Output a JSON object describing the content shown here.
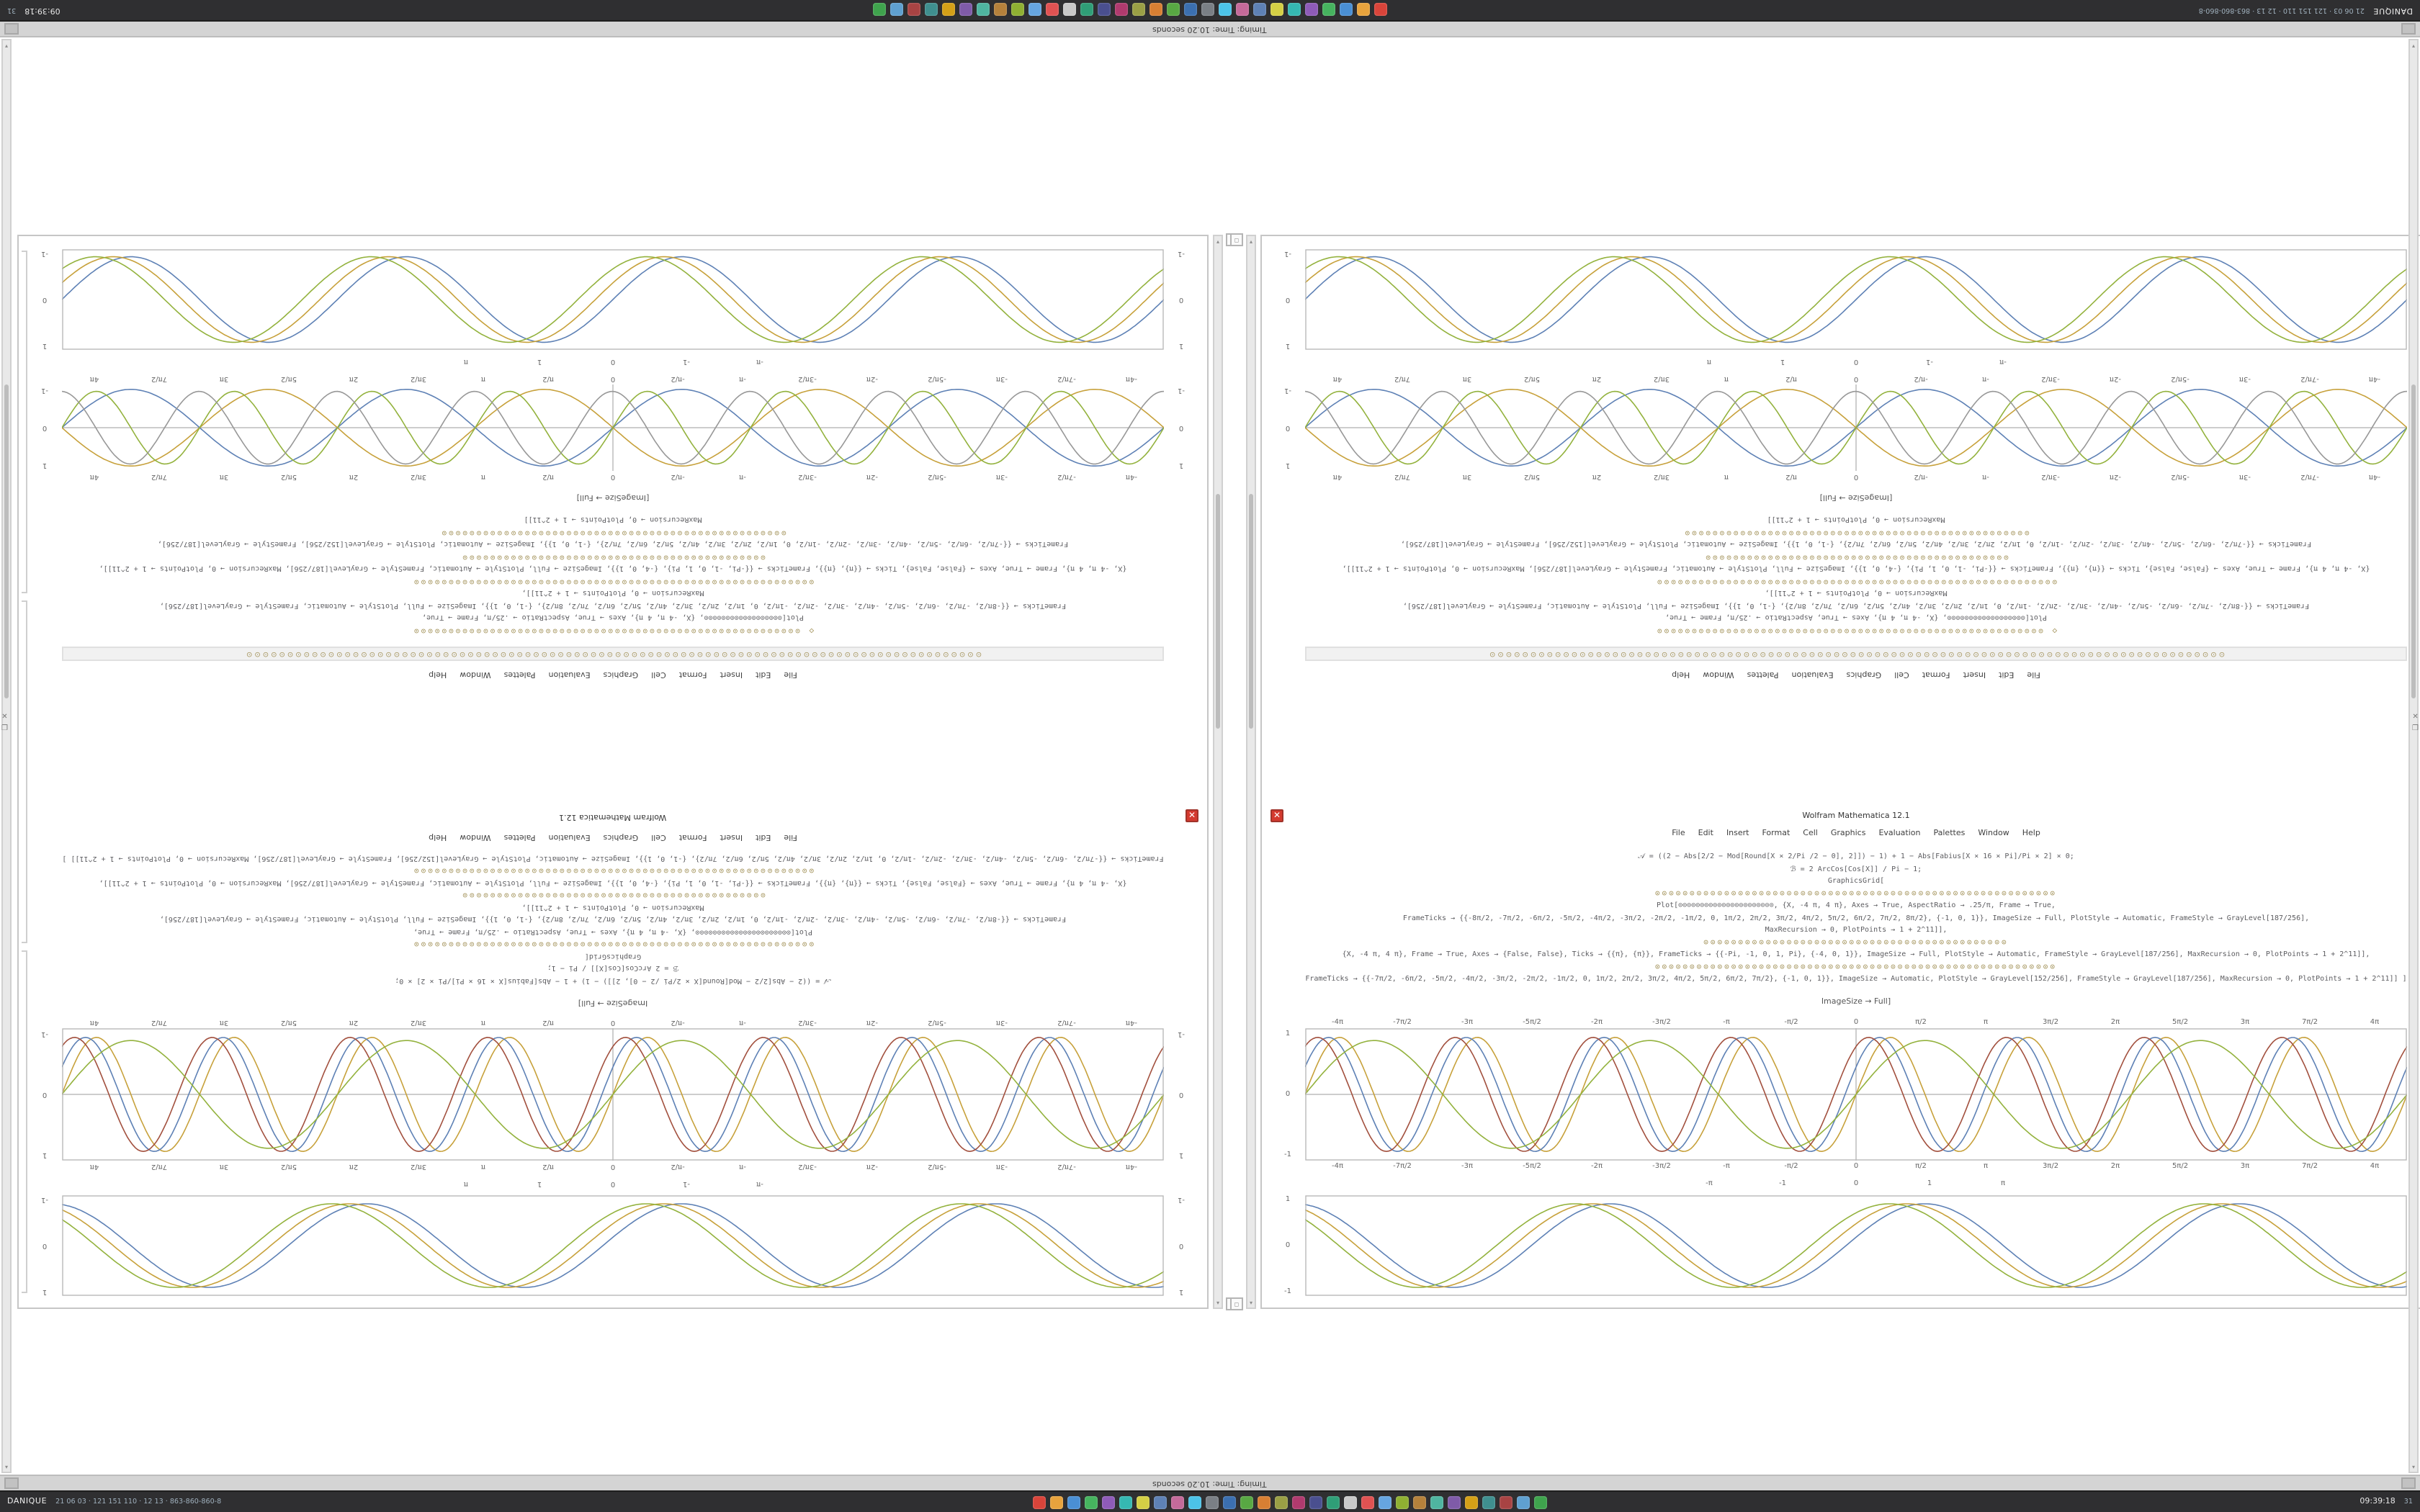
{
  "strips": {
    "timing": "Timing: Time: 10.20 seconds"
  },
  "taskbar": {
    "left_primary": "DANIQUE",
    "left_secondary": "21 06 03 · 121 151 110 · 12 13 · 863-860-860-8",
    "clock": "09:39:18",
    "clock_suffix": "31",
    "icon_colors": [
      "#d9443a",
      "#e8a33d",
      "#4a8fd4",
      "#46b35f",
      "#8e5bb8",
      "#35b8b2",
      "#d4cf45",
      "#5e81b5",
      "#c46a9a",
      "#4cc3e8",
      "#7a7f85",
      "#3b6fb0",
      "#58a843",
      "#d87f33",
      "#9a9f45",
      "#b03a6e",
      "#4a4f8f",
      "#2f9e77",
      "#c9c9c9",
      "#e05252",
      "#66a5e0",
      "#8fb032",
      "#b5813b",
      "#4fb5a0",
      "#7f5ba8",
      "#d4a017",
      "#3f8f8f",
      "#a84343",
      "#5fa0d0",
      "#3fa34d"
    ]
  },
  "glyphs": {
    "close": "✕",
    "restore": "❐",
    "corner": "◻",
    "up": "▴",
    "down": "▾"
  },
  "nb": {
    "title": "Wolfram Mathematica 12.1",
    "menu": [
      "File",
      "Edit",
      "Insert",
      "Format",
      "Cell",
      "Graphics",
      "Evaluation",
      "Palettes",
      "Window",
      "Help"
    ],
    "orb_strip": "⊙⊙⊙⊙⊙⊙⊙⊙⊙⊙⊙⊙⊙⊙⊙⊙⊙⊙⊙⊙⊙⊙⊙⊙⊙⊙⊙⊙⊙⊙⊙⊙⊙⊙⊙⊙⊙⊙⊙⊙⊙⊙⊙⊙⊙⊙⊙⊙⊙⊙⊙⊙⊙⊙⊙⊙⊙⊙⊙⊙⊙⊙⊙⊙⊙⊙⊙⊙⊙⊙⊙⊙⊙⊙⊙⊙⊙⊙⊙⊙⊙⊙⊙⊙⊙⊙⊙⊙⊙⊙",
    "caption1": "[ImageSize → Full]",
    "caption2": "ImageSize → Full]",
    "yticks": [
      "1",
      "0",
      "-1"
    ],
    "unit_ticks": [
      "",
      "",
      "",
      "",
      "",
      "-π",
      "-1",
      "0",
      "1",
      "π",
      "",
      "",
      "",
      "",
      ""
    ],
    "half_pi_ticks": [
      "-4π",
      "-7π/2",
      "-3π",
      "-5π/2",
      "-2π",
      "-3π/2",
      "-π",
      "-π/2",
      "0",
      "π/2",
      "π",
      "3π/2",
      "2π",
      "5π/2",
      "3π",
      "7π/2",
      "4π"
    ],
    "code_upper": [
      "◇ ⊙⊙⊙⊙⊙⊙⊙⊙⊙⊙⊙⊙⊙⊙⊙⊙⊙⊙⊙⊙⊙⊙⊙⊙⊙⊙⊙⊙⊙⊙⊙⊙⊙⊙⊙⊙⊙⊙⊙⊙⊙⊙⊙⊙⊙⊙⊙⊙⊙⊙⊙⊙⊙⊙⊙⊙",
      "Plot[⊙⊙⊙⊙⊙⊙⊙⊙⊙⊙⊙⊙⊙⊙⊙⊙⊙⊙, {X, -4 π, 4 π}, Axes → True, AspectRatio → .25/π, Frame → True,",
      "FrameTicks → {{-8π/2, -7π/2, -6π/2, -5π/2, -4π/2, -3π/2, -2π/2, -1π/2, 0, 1π/2, 2π/2, 3π/2, 4π/2, 5π/2, 6π/2, 7π/2, 8π/2}, {-1, 0, 1}}, ImageSize → Full, PlotStyle → Automatic, FrameStyle → GrayLevel[187/256],",
      "MaxRecursion → 0, PlotPoints → 1 + 2^11]],",
      "⊙⊙⊙⊙⊙⊙⊙⊙⊙⊙⊙⊙⊙⊙⊙⊙⊙⊙⊙⊙⊙⊙⊙⊙⊙⊙⊙⊙⊙⊙⊙⊙⊙⊙⊙⊙⊙⊙⊙⊙⊙⊙⊙⊙⊙⊙⊙⊙⊙⊙⊙⊙⊙⊙⊙⊙⊙⊙",
      "{X, -4 π, 4 π}, Frame → True, Axes → {False, False}, Ticks → {{π}, {π}}, FrameTicks → {{-Pi, -1, 0, 1, Pi}, {-4, 0, 1}}, ImageSize → Full, PlotStyle → Automatic, FrameStyle → GrayLevel[187/256], MaxRecursion → 0, PlotPoints → 1 + 2^11]],",
      "⊙⊙⊙⊙⊙⊙⊙⊙⊙⊙⊙⊙⊙⊙⊙⊙⊙⊙⊙⊙⊙⊙⊙⊙⊙⊙⊙⊙⊙⊙⊙⊙⊙⊙⊙⊙⊙⊙⊙⊙⊙⊙⊙⊙",
      "FrameTicks → {{-7π/2, -6π/2, -5π/2, -4π/2, -3π/2, -2π/2, -1π/2, 0, 1π/2, 2π/2, 3π/2, 4π/2, 5π/2, 6π/2, 7π/2}, {-1, 0, 1}}, ImageSize → Automatic, PlotStyle → GrayLevel[152/256], FrameStyle → GrayLevel[187/256],",
      "⊙⊙⊙⊙⊙⊙⊙⊙⊙⊙⊙⊙⊙⊙⊙⊙⊙⊙⊙⊙⊙⊙⊙⊙⊙⊙⊙⊙⊙⊙⊙⊙⊙⊙⊙⊙⊙⊙⊙⊙⊙⊙⊙⊙⊙⊙⊙⊙⊙⊙",
      "MaxRecursion → 0, PlotPoints → 1 + 2^11]]"
    ],
    "code_lower": [
      "𝒜 = ((2 − Abs[2/2 − Mod[Round[X × 2/Pi /2 − 0], 2]]) − 1) + 1 − Abs[Fabius[X × 16 × Pi]/Pi × 2] × 0;",
      "ℬ = 2 ArcCos[Cos[X]] / Pi − 1;",
      "GraphicsGrid[",
      "⊙⊙⊙⊙⊙⊙⊙⊙⊙⊙⊙⊙⊙⊙⊙⊙⊙⊙⊙⊙⊙⊙⊙⊙⊙⊙⊙⊙⊙⊙⊙⊙⊙⊙⊙⊙⊙⊙⊙⊙⊙⊙⊙⊙⊙⊙⊙⊙⊙⊙⊙⊙⊙⊙⊙⊙⊙⊙",
      "Plot[⊙⊙⊙⊙⊙⊙⊙⊙⊙⊙⊙⊙⊙⊙⊙⊙⊙⊙⊙⊙⊙⊙, {X, -4 π, 4 π}, Axes → True, AspectRatio → .25/π, Frame → True,",
      "FrameTicks → {{-8π/2, -7π/2, -6π/2, -5π/2, -4π/2, -3π/2, -2π/2, -1π/2, 0, 1π/2, 2π/2, 3π/2, 4π/2, 5π/2, 6π/2, 7π/2, 8π/2}, {-1, 0, 1}}, ImageSize → Full, PlotStyle → Automatic, FrameStyle → GrayLevel[187/256],",
      "MaxRecursion → 0, PlotPoints → 1 + 2^11]],",
      "⊙⊙⊙⊙⊙⊙⊙⊙⊙⊙⊙⊙⊙⊙⊙⊙⊙⊙⊙⊙⊙⊙⊙⊙⊙⊙⊙⊙⊙⊙⊙⊙⊙⊙⊙⊙⊙⊙⊙⊙⊙⊙⊙⊙",
      "{X, -4 π, 4 π}, Frame → True, Axes → {False, False}, Ticks → {{π}, {π}}, FrameTicks → {{-Pi, -1, 0, 1, Pi}, {-4, 0, 1}}, ImageSize → Full, PlotStyle → Automatic, FrameStyle → GrayLevel[187/256], MaxRecursion → 0, PlotPoints → 1 + 2^11]],",
      "⊙⊙⊙⊙⊙⊙⊙⊙⊙⊙⊙⊙⊙⊙⊙⊙⊙⊙⊙⊙⊙⊙⊙⊙⊙⊙⊙⊙⊙⊙⊙⊙⊙⊙⊙⊙⊙⊙⊙⊙⊙⊙⊙⊙⊙⊙⊙⊙⊙⊙⊙⊙⊙⊙⊙⊙⊙⊙",
      "FrameTicks → {{-7π/2, -6π/2, -5π/2, -4π/2, -3π/2, -2π/2, -1π/2, 0, 1π/2, 2π/2, 3π/2, 4π/2, 5π/2, 6π/2, 7π/2}, {-1, 0, 1}}, ImageSize → Automatic, PlotStyle → GrayLevel[152/256], FrameStyle → GrayLevel[187/256], MaxRecursion → 0, PlotPoints → 1 + 2^11]] ]"
    ],
    "plot1": {
      "xrange": [
        -12.566,
        12.566
      ],
      "framed": true,
      "axes": false,
      "series": [
        {
          "c": "#5e81b5",
          "f": 1,
          "p": 0,
          "a": 0.9
        },
        {
          "c": "#c7a13b",
          "f": 1,
          "p": 0.4,
          "a": 0.9
        },
        {
          "c": "#93b23d",
          "f": 1,
          "p": 0.8,
          "a": 0.9
        }
      ]
    },
    "plot2": {
      "xrange": [
        -12.566,
        12.566
      ],
      "framed": false,
      "axes": true,
      "series": [
        {
          "c": "#5e81b5",
          "f": 1,
          "p": 0,
          "a": 0.95
        },
        {
          "c": "#c7a13b",
          "f": 1,
          "p": 3.1416,
          "a": 0.95
        },
        {
          "c": "#93b23d",
          "f": 2,
          "p": 0,
          "a": 0.9
        },
        {
          "c": "#989898",
          "f": 2,
          "p": 1.6,
          "a": 0.9
        }
      ]
    },
    "plot3": {
      "xrange": [
        -12.566,
        12.566
      ],
      "framed": true,
      "axes": true,
      "series": [
        {
          "c": "#c7a13b",
          "f": 2,
          "p": 0,
          "a": 0.9
        },
        {
          "c": "#5e81b5",
          "f": 2,
          "p": 0.5,
          "a": 0.9
        },
        {
          "c": "#a2503e",
          "f": 2,
          "p": 1.0,
          "a": 0.9
        },
        {
          "c": "#93b23d",
          "f": 1,
          "p": 0,
          "a": 0.85
        }
      ]
    },
    "plot4": {
      "xrange": [
        -11,
        11
      ],
      "framed": true,
      "axes": false,
      "series": [
        {
          "c": "#5e81b5",
          "f": 1,
          "p": 0.2,
          "a": 0.88
        },
        {
          "c": "#c7a13b",
          "f": 1,
          "p": 0.55,
          "a": 0.88
        },
        {
          "c": "#93b23d",
          "f": 1,
          "p": 0.9,
          "a": 0.88
        }
      ]
    }
  }
}
